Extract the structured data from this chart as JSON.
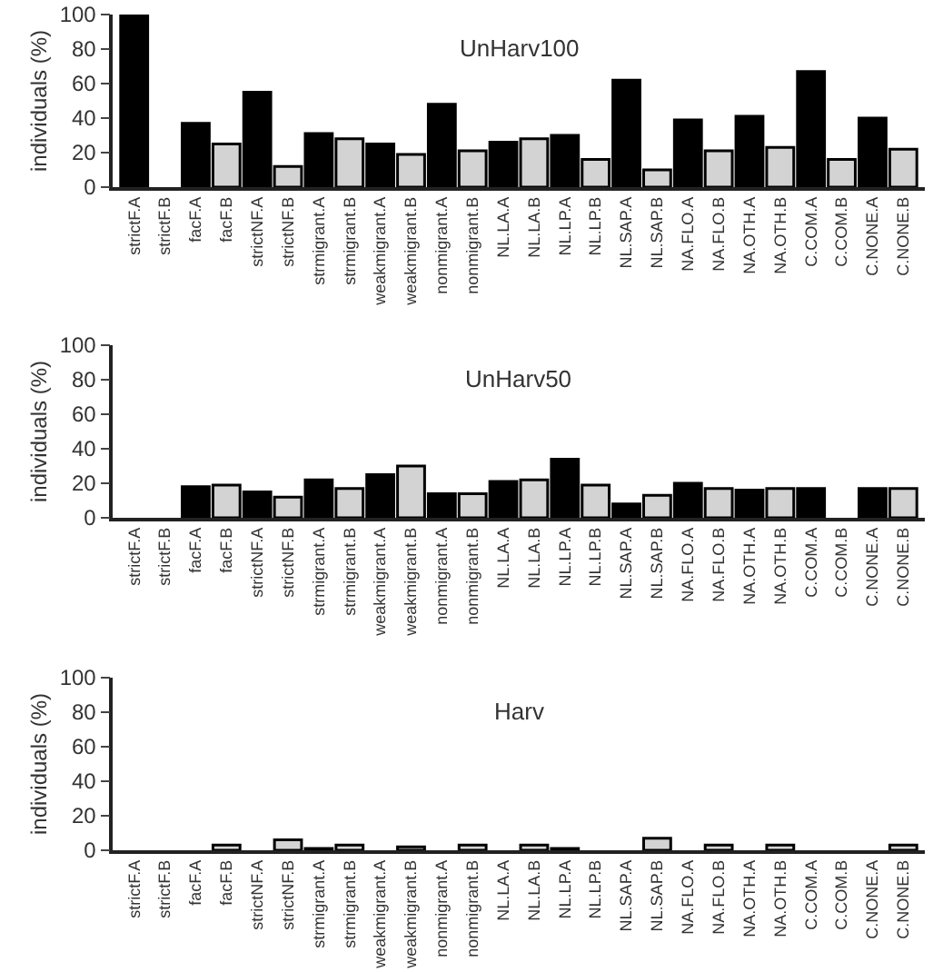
{
  "chart_data": [
    {
      "type": "bar",
      "title": "UnHarv100",
      "ylabel": "individuals (%)",
      "categories": [
        "strictF.A",
        "strictF.B",
        "facF.A",
        "facF.B",
        "strictNF.A",
        "strictNF.B",
        "strmigrant.A",
        "strmigrant.B",
        "weakmigrant.A",
        "weakmigrant.B",
        "nonmigrant.A",
        "nonmigrant.B",
        "NL.LA.A",
        "NL.LA.B",
        "NL.LP.A",
        "NL.LP.B",
        "NL.SAP.A",
        "NL.SAP.B",
        "NA.FLO.A",
        "NA.FLO.B",
        "NA.OTH.A",
        "NA.OTH.B",
        "C.COM.A",
        "C.COM.B",
        "C.NONE.A",
        "C.NONE.B"
      ],
      "values": [
        100,
        0,
        37,
        25,
        55,
        12,
        31,
        28,
        25,
        19,
        48,
        21,
        26,
        28,
        30,
        16,
        62,
        10,
        39,
        21,
        41,
        23,
        67,
        16,
        40,
        22
      ],
      "colors": [
        "#000000",
        "#d3d3d3",
        "#000000",
        "#d3d3d3",
        "#000000",
        "#d3d3d3",
        "#000000",
        "#d3d3d3",
        "#000000",
        "#d3d3d3",
        "#000000",
        "#d3d3d3",
        "#000000",
        "#d3d3d3",
        "#000000",
        "#d3d3d3",
        "#000000",
        "#d3d3d3",
        "#000000",
        "#d3d3d3",
        "#000000",
        "#d3d3d3",
        "#000000",
        "#d3d3d3",
        "#000000",
        "#d3d3d3"
      ],
      "ylim": [
        0,
        100
      ],
      "yticks": [
        0,
        20,
        40,
        60,
        80,
        100
      ],
      "grid": false,
      "legend": false
    },
    {
      "type": "bar",
      "title": "UnHarv50",
      "ylabel": "individuals (%)",
      "categories": [
        "strictF.A",
        "strictF.B",
        "facF.A",
        "facF.B",
        "strictNF.A",
        "strictNF.B",
        "strmigrant.A",
        "strmigrant.B",
        "weakmigrant.A",
        "weakmigrant.B",
        "nonmigrant.A",
        "nonmigrant.B",
        "NL.LA.A",
        "NL.LA.B",
        "NL.LP.A",
        "NL.LP.B",
        "NL.SAP.A",
        "NL.SAP.B",
        "NA.FLO.A",
        "NA.FLO.B",
        "NA.OTH.A",
        "NA.OTH.B",
        "C.COM.A",
        "C.COM.B",
        "C.NONE.A",
        "C.NONE.B"
      ],
      "values": [
        0,
        0,
        18,
        19,
        15,
        12,
        22,
        17,
        25,
        30,
        14,
        14,
        21,
        22,
        34,
        19,
        8,
        13,
        20,
        17,
        16,
        17,
        17,
        0,
        17,
        17
      ],
      "colors": [
        "#000000",
        "#d3d3d3",
        "#000000",
        "#d3d3d3",
        "#000000",
        "#d3d3d3",
        "#000000",
        "#d3d3d3",
        "#000000",
        "#d3d3d3",
        "#000000",
        "#d3d3d3",
        "#000000",
        "#d3d3d3",
        "#000000",
        "#d3d3d3",
        "#000000",
        "#d3d3d3",
        "#000000",
        "#d3d3d3",
        "#000000",
        "#d3d3d3",
        "#000000",
        "#d3d3d3",
        "#000000",
        "#d3d3d3"
      ],
      "ylim": [
        0,
        100
      ],
      "yticks": [
        0,
        20,
        40,
        60,
        80,
        100
      ],
      "grid": false,
      "legend": false
    },
    {
      "type": "bar",
      "title": "Harv",
      "ylabel": "individuals (%)",
      "categories": [
        "strictF.A",
        "strictF.B",
        "facF.A",
        "facF.B",
        "strictNF.A",
        "strictNF.B",
        "strmigrant.A",
        "strmigrant.B",
        "weakmigrant.A",
        "weakmigrant.B",
        "nonmigrant.A",
        "nonmigrant.B",
        "NL.LA.A",
        "NL.LA.B",
        "NL.LP.A",
        "NL.LP.B",
        "NL.SAP.A",
        "NL.SAP.B",
        "NA.FLO.A",
        "NA.FLO.B",
        "NA.OTH.A",
        "NA.OTH.B",
        "C.COM.A",
        "C.COM.B",
        "C.NONE.A",
        "C.NONE.B"
      ],
      "values": [
        0,
        0,
        0,
        3,
        0,
        6,
        1,
        3,
        0,
        2,
        0,
        3,
        0,
        3,
        1,
        0,
        0,
        7,
        0,
        3,
        0,
        3,
        0,
        0,
        0,
        3
      ],
      "colors": [
        "#000000",
        "#d3d3d3",
        "#000000",
        "#d3d3d3",
        "#000000",
        "#d3d3d3",
        "#000000",
        "#d3d3d3",
        "#000000",
        "#d3d3d3",
        "#000000",
        "#d3d3d3",
        "#000000",
        "#d3d3d3",
        "#000000",
        "#d3d3d3",
        "#000000",
        "#d3d3d3",
        "#000000",
        "#d3d3d3",
        "#000000",
        "#d3d3d3",
        "#000000",
        "#d3d3d3",
        "#000000",
        "#d3d3d3"
      ],
      "ylim": [
        0,
        100
      ],
      "yticks": [
        0,
        20,
        40,
        60,
        80,
        100
      ],
      "grid": false,
      "legend": false
    }
  ]
}
